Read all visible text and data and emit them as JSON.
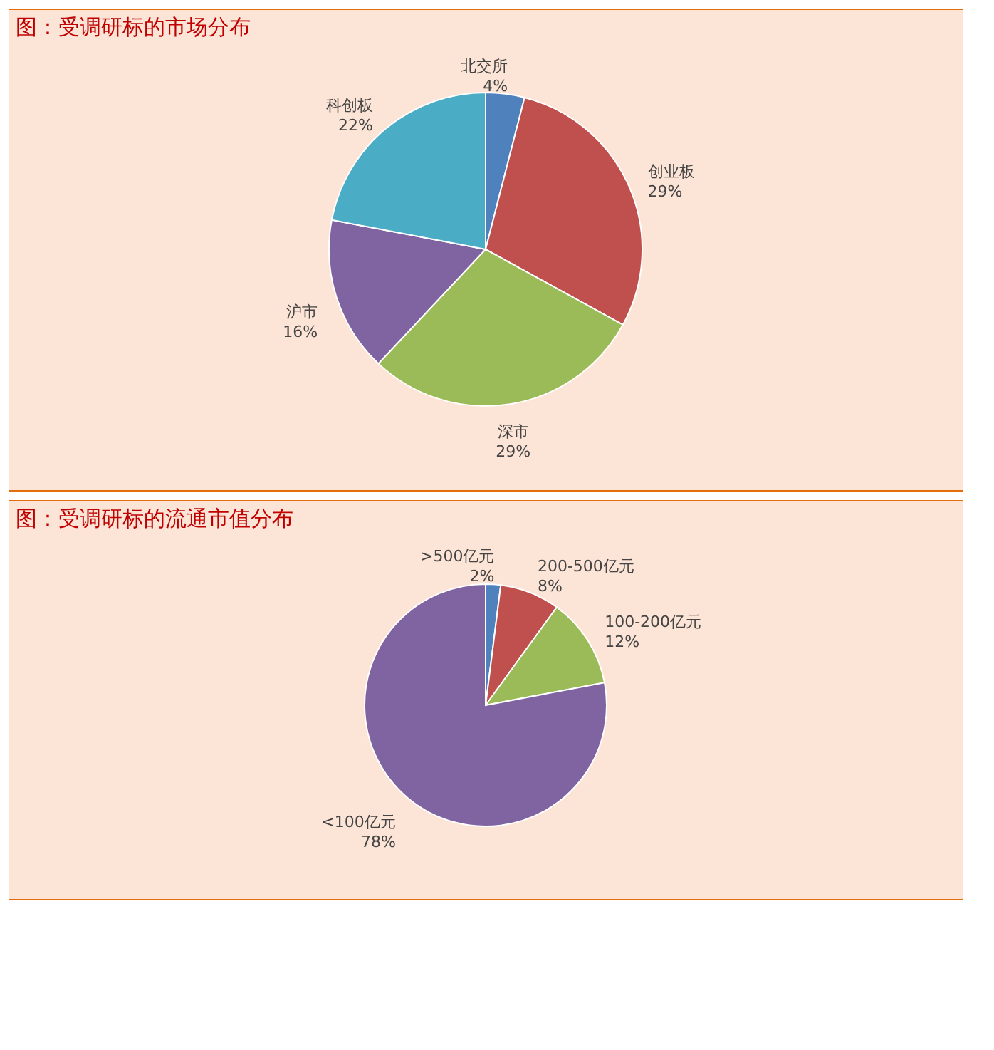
{
  "chart_data": [
    {
      "type": "pie",
      "title": "图：受调研标的市场分布",
      "categories": [
        "北交所",
        "创业板",
        "深市",
        "沪市",
        "科创板"
      ],
      "values": [
        4,
        29,
        29,
        16,
        22
      ],
      "value_labels": [
        "4%",
        "29%",
        "29%",
        "16%",
        "22%"
      ],
      "colors": [
        "#4f81bd",
        "#c0504d",
        "#9bbb59",
        "#8064a2",
        "#4bacc6"
      ],
      "legend": false
    },
    {
      "type": "pie",
      "title": "图：受调研标的流通市值分布",
      "categories": [
        ">500亿元",
        "200-500亿元",
        "100-200亿元",
        "<100亿元"
      ],
      "values": [
        2,
        8,
        12,
        78
      ],
      "value_labels": [
        "2%",
        "8%",
        "12%",
        "78%"
      ],
      "colors": [
        "#4f81bd",
        "#c0504d",
        "#9bbb59",
        "#8064a2"
      ],
      "legend": false
    }
  ]
}
